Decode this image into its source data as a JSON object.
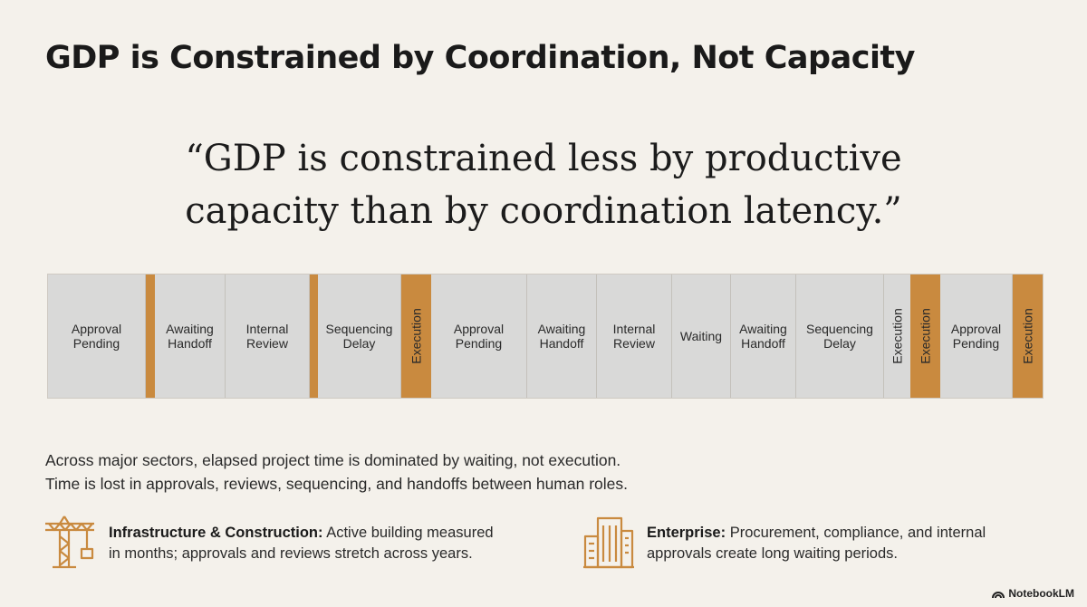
{
  "title": "GDP is Constrained by Coordination, Not Capacity",
  "quote": {
    "line1": "“GDP is constrained less by productive",
    "line2_a": "capacity than by ",
    "line2_b": "coordination latency.”"
  },
  "timeline": {
    "segments": [
      {
        "label": "Approval Pending",
        "kind": "wait"
      },
      {
        "label": "",
        "kind": "exec"
      },
      {
        "label": "Awaiting Handoff",
        "kind": "wait"
      },
      {
        "label": "Internal Review",
        "kind": "wait"
      },
      {
        "label": "",
        "kind": "exec"
      },
      {
        "label": "Sequencing Delay",
        "kind": "wait"
      },
      {
        "label": "Execution",
        "kind": "exec"
      },
      {
        "label": "Approval Pending",
        "kind": "wait"
      },
      {
        "label": "Awaiting Handoff",
        "kind": "wait"
      },
      {
        "label": "Internal Review",
        "kind": "wait"
      },
      {
        "label": "Waiting",
        "kind": "wait"
      },
      {
        "label": "Awaiting Handoff",
        "kind": "wait"
      },
      {
        "label": "Sequencing Delay",
        "kind": "wait"
      },
      {
        "label": "Execution",
        "kind": "exec-grey"
      },
      {
        "label": "Execution",
        "kind": "exec"
      },
      {
        "label": "Approval Pending",
        "kind": "wait"
      },
      {
        "label": "Execution",
        "kind": "exec"
      }
    ]
  },
  "summary": {
    "line1": "Across major sectors, elapsed project time is dominated by waiting, not execution.",
    "line2": "Time is lost in approvals, reviews, sequencing, and handoffs between human roles."
  },
  "sectors": {
    "infra": {
      "icon": "crane-icon",
      "heading": "Infrastructure & Construction:",
      "line1_rest": " Active building measured",
      "line2": "in months; approvals and reviews stretch across years."
    },
    "enterprise": {
      "icon": "office-building-icon",
      "heading": "Enterprise:",
      "line1_rest": " Procurement, compliance, and internal",
      "line2": "approvals create long waiting periods."
    }
  },
  "brand": "NotebookLM",
  "colors": {
    "background": "#f4f1eb",
    "waiting": "#d9d9d8",
    "execution": "#c98a3f",
    "icon": "#c98a3f"
  }
}
